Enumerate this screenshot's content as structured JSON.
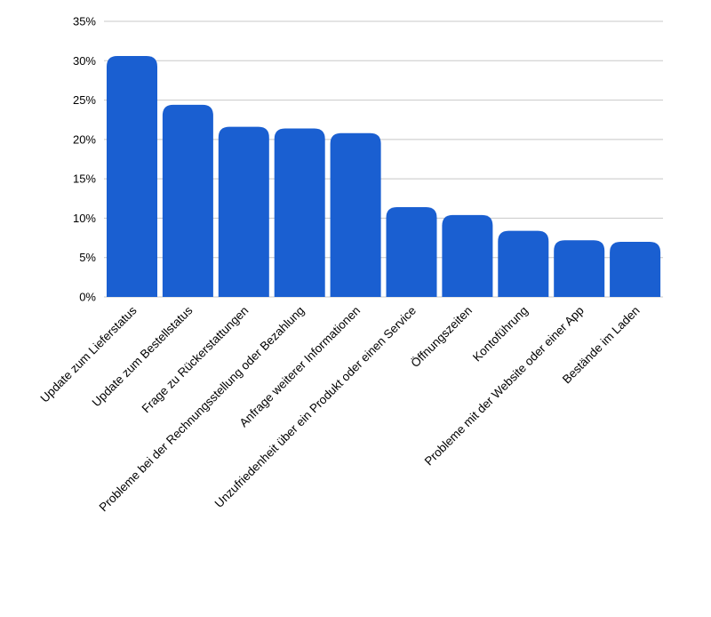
{
  "chart_data": {
    "type": "bar",
    "title": "",
    "xlabel": "",
    "ylabel": "",
    "ylim": [
      0,
      35
    ],
    "y_ticks": [
      0,
      5,
      10,
      15,
      20,
      25,
      30,
      35
    ],
    "y_tick_format": "percent",
    "grid": "horizontal",
    "legend": "none",
    "bar_color": "#1a5fd1",
    "categories": [
      "Update zum Lieferstatus",
      "Update zum Bestellstatus",
      "Frage zu Rückerstattungen",
      "Probleme bei der Rechnungsstellung oder Bezahlung",
      "Anfrage weiterer Informationen",
      "Unzufriedenheit über ein Produkt oder einen Service",
      "Öffnungszeiten",
      "Kontoführung",
      "Probleme mit der Website oder einer App",
      "Bestände im Laden"
    ],
    "values": [
      30.6,
      24.4,
      21.6,
      21.4,
      20.8,
      11.4,
      10.4,
      8.4,
      7.2,
      7.0
    ]
  }
}
